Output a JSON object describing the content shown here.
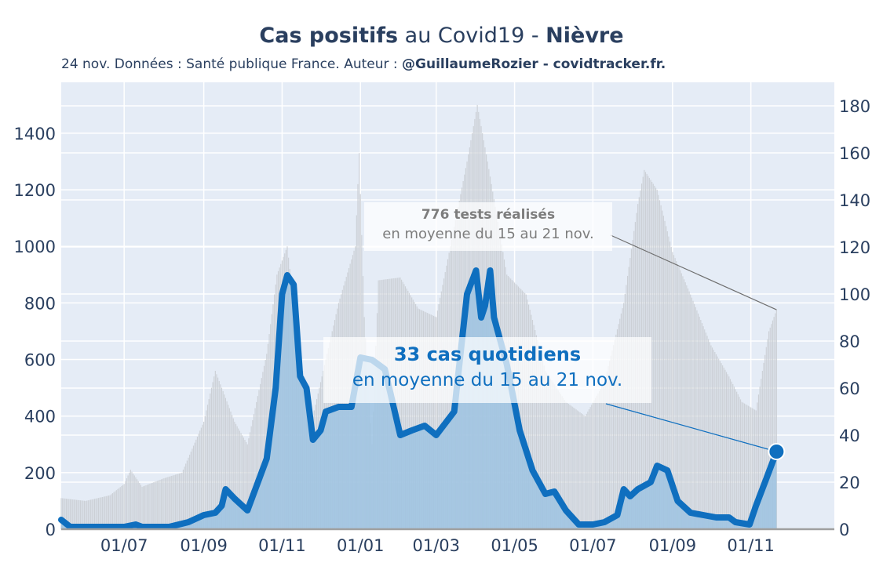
{
  "header": {
    "title_bold1": "Cas positifs",
    "title_mid": " au Covid19 - ",
    "title_bold2": "Nièvre",
    "subtitle_plain": "24 nov. Données : Santé publique France. Auteur : ",
    "subtitle_bold": "@GuillaumeRozier - covidtracker.fr."
  },
  "annotations": {
    "tests_line1": "776 tests réalisés",
    "tests_line2": "en moyenne du 15 au 21 nov.",
    "cases_line1": "33 cas quotidiens",
    "cases_line2": "en moyenne du 15 au 21 nov."
  },
  "colors": {
    "plot_bg": "#e5ecf6",
    "tests_bars": "#c9cdd3",
    "cases_area": "#9ec3e2",
    "cases_line": "#0f6fbf",
    "axis_text": "#2a3f5f",
    "tests_text": "#7d7d7d"
  },
  "chart_data": {
    "type": "line",
    "x_start": "2020-05-13",
    "x_end": "2021-11-21",
    "xlim": [
      "2020-05-13",
      "2022-01-05"
    ],
    "x_ticks": [
      "2020-07-01",
      "2020-09-01",
      "2020-11-01",
      "2021-01-01",
      "2021-03-01",
      "2021-05-01",
      "2021-07-01",
      "2021-09-01",
      "2021-11-01"
    ],
    "x_tick_labels": [
      "01/07",
      "01/09",
      "01/11",
      "01/01",
      "01/03",
      "01/05",
      "01/07",
      "01/09",
      "01/11"
    ],
    "left_axis": {
      "ylim": [
        0,
        1580
      ],
      "ticks": [
        0,
        200,
        400,
        600,
        800,
        1000,
        1200,
        1400
      ]
    },
    "right_axis": {
      "ylim": [
        0,
        190
      ],
      "ticks": [
        0,
        20,
        40,
        60,
        80,
        100,
        120,
        140,
        160,
        180
      ]
    },
    "grid": true,
    "series": [
      {
        "axis": "left",
        "style": "bars",
        "points": [
          [
            "2020-05-13",
            110
          ],
          [
            "2020-06-01",
            100
          ],
          [
            "2020-06-20",
            120
          ],
          [
            "2020-07-01",
            160
          ],
          [
            "2020-07-06",
            210
          ],
          [
            "2020-07-15",
            150
          ],
          [
            "2020-08-01",
            180
          ],
          [
            "2020-08-15",
            200
          ],
          [
            "2020-09-01",
            380
          ],
          [
            "2020-09-10",
            560
          ],
          [
            "2020-09-25",
            380
          ],
          [
            "2020-10-05",
            300
          ],
          [
            "2020-10-20",
            620
          ],
          [
            "2020-10-28",
            900
          ],
          [
            "2020-11-05",
            1000
          ],
          [
            "2020-11-15",
            600
          ],
          [
            "2020-11-25",
            400
          ],
          [
            "2020-12-05",
            600
          ],
          [
            "2020-12-15",
            800
          ],
          [
            "2020-12-28",
            1000
          ],
          [
            "2020-12-31",
            1330
          ],
          [
            "2021-01-04",
            750
          ],
          [
            "2021-01-10",
            300
          ],
          [
            "2021-01-15",
            880
          ],
          [
            "2021-02-01",
            890
          ],
          [
            "2021-02-15",
            780
          ],
          [
            "2021-03-01",
            750
          ],
          [
            "2021-03-12",
            1000
          ],
          [
            "2021-03-25",
            1300
          ],
          [
            "2021-04-02",
            1500
          ],
          [
            "2021-04-10",
            1300
          ],
          [
            "2021-04-25",
            900
          ],
          [
            "2021-05-10",
            830
          ],
          [
            "2021-05-25",
            560
          ],
          [
            "2021-06-10",
            450
          ],
          [
            "2021-06-25",
            400
          ],
          [
            "2021-07-10",
            520
          ],
          [
            "2021-07-25",
            800
          ],
          [
            "2021-08-05",
            1150
          ],
          [
            "2021-08-10",
            1270
          ],
          [
            "2021-08-20",
            1200
          ],
          [
            "2021-09-01",
            980
          ],
          [
            "2021-09-15",
            830
          ],
          [
            "2021-10-01",
            650
          ],
          [
            "2021-10-15",
            540
          ],
          [
            "2021-10-25",
            450
          ],
          [
            "2021-11-05",
            420
          ],
          [
            "2021-11-15",
            700
          ],
          [
            "2021-11-21",
            776
          ]
        ]
      },
      {
        "axis": "right",
        "style": "line+area",
        "points": [
          [
            "2020-05-13",
            4
          ],
          [
            "2020-05-20",
            1
          ],
          [
            "2020-07-01",
            1
          ],
          [
            "2020-07-10",
            2
          ],
          [
            "2020-07-15",
            1
          ],
          [
            "2020-08-05",
            1
          ],
          [
            "2020-08-20",
            3
          ],
          [
            "2020-09-01",
            6
          ],
          [
            "2020-09-10",
            7
          ],
          [
            "2020-09-15",
            10
          ],
          [
            "2020-09-18",
            17
          ],
          [
            "2020-09-25",
            13
          ],
          [
            "2020-10-05",
            8
          ],
          [
            "2020-10-20",
            30
          ],
          [
            "2020-10-27",
            60
          ],
          [
            "2020-11-01",
            100
          ],
          [
            "2020-11-05",
            108
          ],
          [
            "2020-11-10",
            104
          ],
          [
            "2020-11-15",
            65
          ],
          [
            "2020-11-20",
            60
          ],
          [
            "2020-11-25",
            38
          ],
          [
            "2020-12-01",
            42
          ],
          [
            "2020-12-05",
            50
          ],
          [
            "2020-12-15",
            52
          ],
          [
            "2020-12-25",
            52
          ],
          [
            "2021-01-01",
            73
          ],
          [
            "2021-01-10",
            72
          ],
          [
            "2021-01-20",
            68
          ],
          [
            "2021-02-01",
            40
          ],
          [
            "2021-02-10",
            42
          ],
          [
            "2021-02-20",
            44
          ],
          [
            "2021-03-01",
            40
          ],
          [
            "2021-03-15",
            50
          ],
          [
            "2021-03-25",
            100
          ],
          [
            "2021-04-01",
            110
          ],
          [
            "2021-04-05",
            90
          ],
          [
            "2021-04-08",
            95
          ],
          [
            "2021-04-12",
            110
          ],
          [
            "2021-04-15",
            90
          ],
          [
            "2021-04-25",
            70
          ],
          [
            "2021-05-05",
            42
          ],
          [
            "2021-05-15",
            25
          ],
          [
            "2021-05-25",
            15
          ],
          [
            "2021-06-01",
            16
          ],
          [
            "2021-06-10",
            8
          ],
          [
            "2021-06-20",
            2
          ],
          [
            "2021-07-01",
            2
          ],
          [
            "2021-07-10",
            3
          ],
          [
            "2021-07-20",
            6
          ],
          [
            "2021-07-25",
            17
          ],
          [
            "2021-07-30",
            14
          ],
          [
            "2021-08-05",
            17
          ],
          [
            "2021-08-15",
            20
          ],
          [
            "2021-08-20",
            27
          ],
          [
            "2021-08-28",
            25
          ],
          [
            "2021-09-05",
            12
          ],
          [
            "2021-09-15",
            7
          ],
          [
            "2021-09-25",
            6
          ],
          [
            "2021-10-05",
            5
          ],
          [
            "2021-10-15",
            5
          ],
          [
            "2021-10-20",
            3
          ],
          [
            "2021-10-31",
            2
          ],
          [
            "2021-11-05",
            10
          ],
          [
            "2021-11-12",
            20
          ],
          [
            "2021-11-21",
            33
          ]
        ]
      }
    ]
  }
}
